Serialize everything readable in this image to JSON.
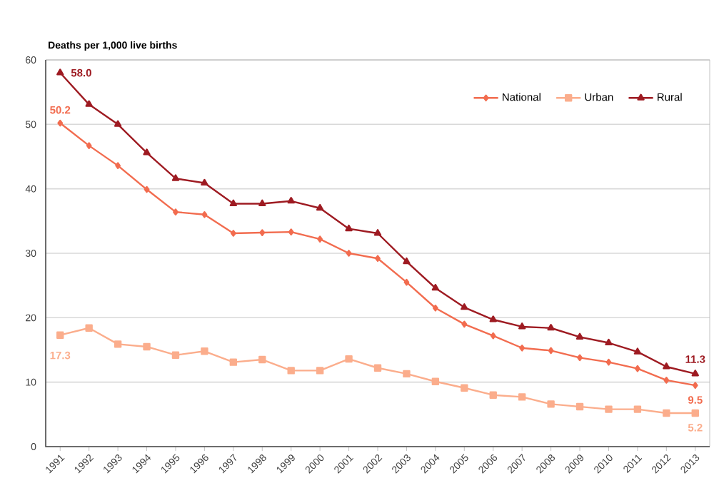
{
  "chart_data": {
    "type": "line",
    "ylabel": "Deaths per 1,000 live births",
    "categories": [
      "1991",
      "1992",
      "1993",
      "1994",
      "1995",
      "1996",
      "1997",
      "1998",
      "1999",
      "2000",
      "2001",
      "2002",
      "2003",
      "2004",
      "2005",
      "2006",
      "2007",
      "2008",
      "2009",
      "2010",
      "2011",
      "2012",
      "2013"
    ],
    "ylim": [
      0,
      60
    ],
    "yticks": [
      0,
      10,
      20,
      30,
      40,
      50,
      60
    ],
    "grid": "y",
    "legend": "top right",
    "series": [
      {
        "name": "National",
        "color": "#f26c4f",
        "marker": "diamond",
        "values": [
          50.2,
          46.7,
          43.6,
          39.9,
          36.4,
          36.0,
          33.1,
          33.2,
          33.3,
          32.2,
          30.0,
          29.2,
          25.5,
          21.5,
          19.0,
          17.2,
          15.3,
          14.9,
          13.8,
          13.1,
          12.1,
          10.3,
          9.5
        ],
        "value_labels": [
          "50.2",
          null,
          null,
          null,
          null,
          null,
          null,
          null,
          null,
          null,
          null,
          null,
          null,
          null,
          null,
          null,
          null,
          null,
          null,
          null,
          null,
          null,
          "9.5"
        ]
      },
      {
        "name": "Urban",
        "color": "#fbad8c",
        "marker": "square",
        "values": [
          17.3,
          18.4,
          15.9,
          15.5,
          14.2,
          14.8,
          13.1,
          13.5,
          11.8,
          11.8,
          13.6,
          12.2,
          11.3,
          10.1,
          9.1,
          8.0,
          7.7,
          6.6,
          6.2,
          5.8,
          5.8,
          5.2,
          5.2
        ],
        "value_labels": [
          "17.3",
          null,
          null,
          null,
          null,
          null,
          null,
          null,
          null,
          null,
          null,
          null,
          null,
          null,
          null,
          null,
          null,
          null,
          null,
          null,
          null,
          null,
          "5.2"
        ]
      },
      {
        "name": "Rural",
        "color": "#9e1b22",
        "marker": "triangle",
        "values": [
          58.0,
          53.1,
          50.0,
          45.6,
          41.6,
          40.9,
          37.7,
          37.7,
          38.1,
          37.0,
          33.8,
          33.1,
          28.7,
          24.6,
          21.6,
          19.7,
          18.6,
          18.4,
          17.0,
          16.1,
          14.7,
          12.4,
          11.3
        ],
        "value_labels": [
          "58.0",
          null,
          null,
          null,
          null,
          null,
          null,
          null,
          null,
          null,
          null,
          null,
          null,
          null,
          null,
          null,
          null,
          null,
          null,
          null,
          null,
          null,
          "11.3"
        ]
      }
    ]
  }
}
